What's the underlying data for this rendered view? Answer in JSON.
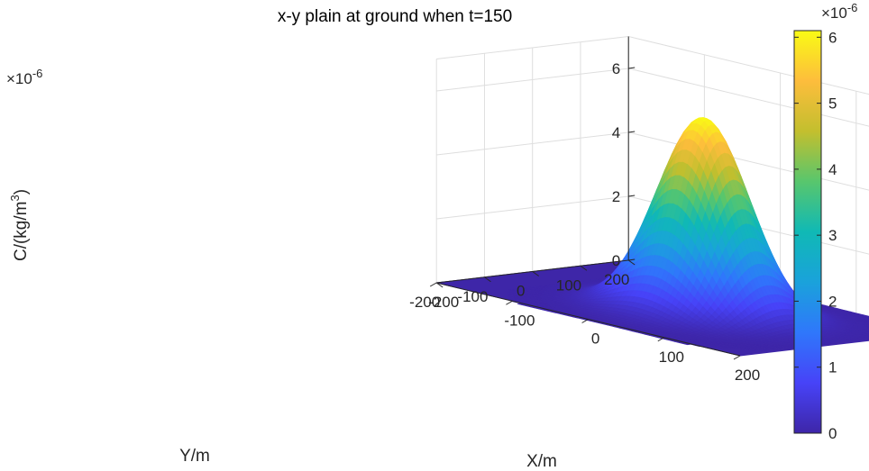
{
  "chart_data": {
    "type": "surface",
    "title": "x-y plain at ground when t=150",
    "xlabel": "X/m",
    "ylabel": "Y/m",
    "zlabel_prefix": "C/(kg/m",
    "zlabel_sup": "3",
    "zlabel_suffix": ")",
    "z_exponent": "×10",
    "z_exponent_power": "-6",
    "x_ticks": [
      "-200",
      "-100",
      "0",
      "100",
      "200"
    ],
    "y_ticks": [
      "200",
      "100",
      "0",
      "-100",
      "-200"
    ],
    "z_ticks": [
      "0",
      "2",
      "4",
      "6"
    ],
    "xlim": [
      -200,
      200
    ],
    "ylim": [
      -200,
      200
    ],
    "zlim": [
      0,
      7e-06
    ],
    "grid": true,
    "surface": {
      "function": "gaussian",
      "peak": 6.1e-06,
      "center_x": 25,
      "center_y": 0,
      "sigma_x": 48,
      "sigma_y": 60
    },
    "colorbar": {
      "ticks": [
        "0",
        "1",
        "2",
        "3",
        "4",
        "5",
        "6"
      ],
      "range": [
        0,
        6.1e-06
      ],
      "exponent": "×10",
      "exponent_power": "-6",
      "colormap": "parula"
    }
  }
}
